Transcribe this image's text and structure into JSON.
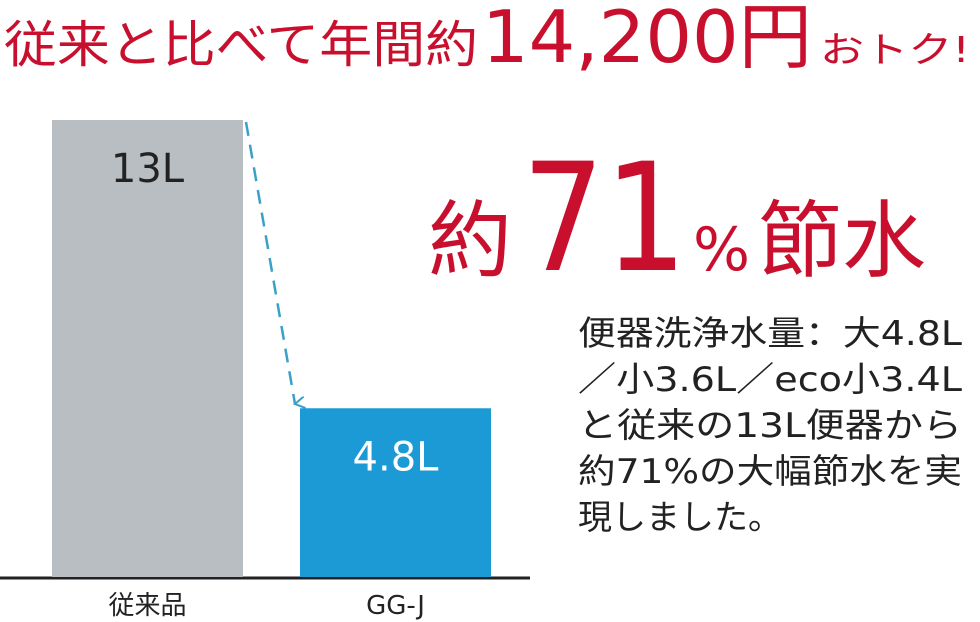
{
  "chart_data": {
    "type": "bar",
    "title": [
      "従来と比べて年間約",
      "14,200円",
      "おトク!"
    ],
    "headline": [
      "約",
      "71",
      "%",
      "節水"
    ],
    "description": [
      "便器洗浄水量：大4.8L",
      "／小3.6L／eco小3.4L",
      "と従来の13L便器から",
      "約71%の大幅節水を実",
      "現しました。"
    ],
    "categories": [
      "従来品",
      "GG-J"
    ],
    "values": [
      13,
      4.8
    ],
    "value_labels": [
      "13L",
      "4.8L"
    ],
    "colors": [
      "#b9bec3",
      "#1b9ad6"
    ],
    "ylim": [
      0,
      13
    ]
  }
}
